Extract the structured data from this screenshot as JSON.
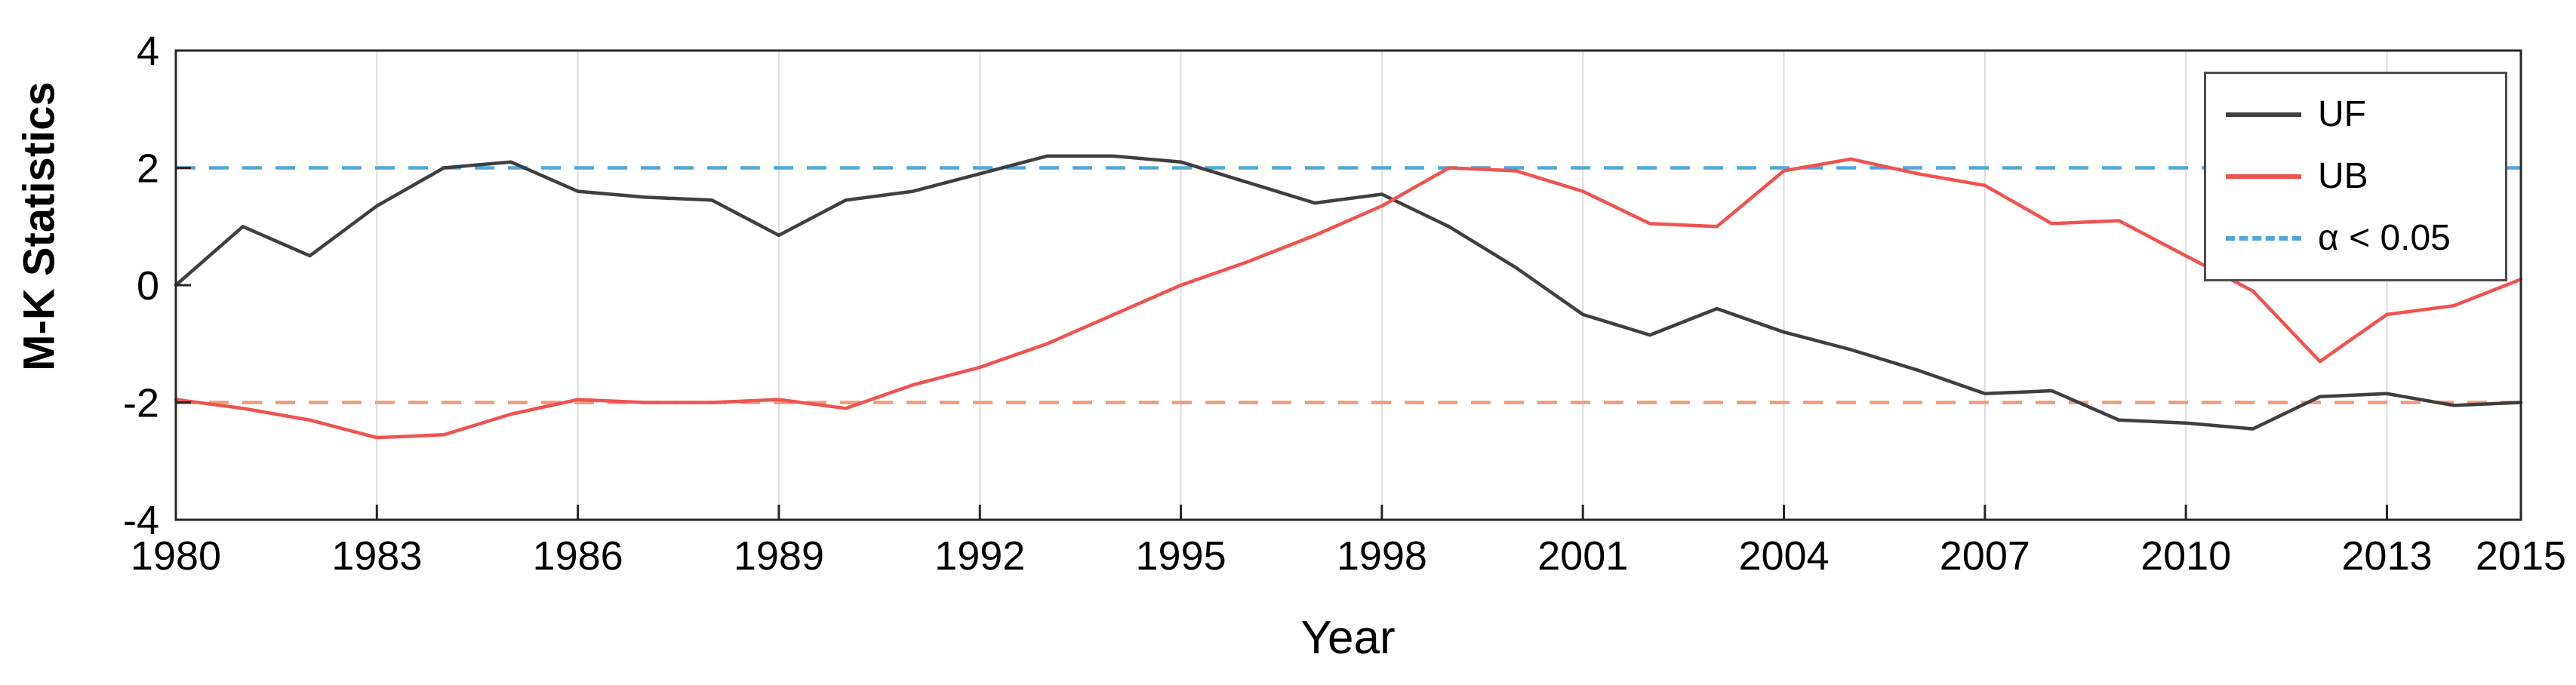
{
  "figure": {
    "background": "#ffffff"
  },
  "chart_data": {
    "type": "line",
    "title": "",
    "xlabel": "Year",
    "ylabel": "M-K Statistics",
    "xlim": [
      1980,
      2015
    ],
    "ylim": [
      -4,
      4
    ],
    "xticks": [
      1980,
      1983,
      1986,
      1989,
      1992,
      1995,
      1998,
      2001,
      2004,
      2007,
      2010,
      2013,
      2015
    ],
    "yticks": [
      -4,
      -2,
      0,
      2,
      4
    ],
    "grid": {
      "vertical": true,
      "horizontal": false,
      "color": "#dcdcdc"
    },
    "axis_color": "#262626",
    "x": [
      1980,
      1981,
      1982,
      1983,
      1984,
      1985,
      1986,
      1987,
      1988,
      1989,
      1990,
      1991,
      1992,
      1993,
      1994,
      1995,
      1996,
      1997,
      1998,
      1999,
      2000,
      2001,
      2002,
      2003,
      2004,
      2005,
      2006,
      2007,
      2008,
      2009,
      2010,
      2011,
      2012,
      2013,
      2014,
      2015
    ],
    "series": [
      {
        "name": "UF",
        "color": "#3f3f3f",
        "style": "solid",
        "values": [
          0.0,
          1.0,
          0.5,
          1.35,
          2.0,
          2.1,
          1.6,
          1.5,
          1.45,
          0.85,
          1.45,
          1.6,
          1.9,
          2.2,
          2.2,
          2.1,
          1.75,
          1.4,
          1.55,
          1.0,
          0.3,
          -0.5,
          -0.85,
          -0.4,
          -0.8,
          -1.1,
          -1.45,
          -1.85,
          -1.8,
          -2.3,
          -2.35,
          -2.45,
          -1.9,
          -1.85,
          -2.05,
          -2.0
        ]
      },
      {
        "name": "UB",
        "color": "#f0534e",
        "style": "solid",
        "values": [
          -1.95,
          -2.1,
          -2.3,
          -2.6,
          -2.55,
          -2.2,
          -1.95,
          -2.0,
          -2.0,
          -1.95,
          -2.1,
          -1.7,
          -1.4,
          -1.0,
          -0.5,
          0.0,
          0.4,
          0.85,
          1.35,
          2.0,
          1.95,
          1.6,
          1.05,
          1.0,
          1.95,
          2.15,
          1.9,
          1.7,
          1.05,
          1.1,
          0.5,
          -0.1,
          -1.3,
          -0.5,
          -0.35,
          0.1
        ]
      }
    ],
    "reference_lines": [
      {
        "name": "significance-upper",
        "y": 2,
        "color": "#4fa8dc",
        "style": "dashed",
        "label": "α < 0.05"
      },
      {
        "name": "significance-lower",
        "y": -2,
        "color": "#f09a76",
        "style": "dashed",
        "label": ""
      }
    ],
    "legend": {
      "position": "top-right",
      "entries": [
        {
          "label": "UF",
          "color": "#3f3f3f",
          "style": "solid"
        },
        {
          "label": "UB",
          "color": "#f0534e",
          "style": "solid"
        },
        {
          "label": "α < 0.05",
          "color": "#4fa8dc",
          "style": "dashed"
        }
      ]
    }
  }
}
